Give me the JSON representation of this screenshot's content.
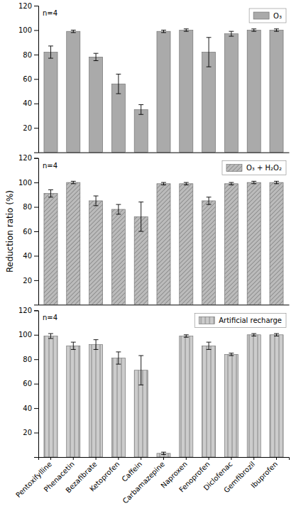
{
  "chart_data": [
    {
      "type": "bar",
      "categories": [
        "Pentoxifylline",
        "Phenacetin",
        "Bezafibrate",
        "Ketoprofen",
        "Caffein",
        "Carbamazepine",
        "Naproxen",
        "Fenoprofen",
        "Diclofenac",
        "Gemfibrozil",
        "Ibuprofen"
      ],
      "series": [
        {
          "name": "O₃",
          "color": "#aaaaaa",
          "values": [
            82,
            99,
            78,
            56,
            35,
            99,
            100,
            82,
            97,
            100,
            100
          ],
          "errors": [
            5,
            1,
            3,
            8,
            4,
            1,
            1,
            12,
            2,
            1,
            1
          ]
        }
      ],
      "annotations": [
        "n=4"
      ],
      "ylim": [
        0,
        120
      ],
      "yticks": [
        20,
        40,
        60,
        80,
        100,
        120
      ],
      "legend": "upper right",
      "tick_labels": "y"
    },
    {
      "type": "bar",
      "categories": [
        "Pentoxifylline",
        "Phenacetin",
        "Bezafibrate",
        "Ketoprofen",
        "Caffein",
        "Carbamazepine",
        "Naproxen",
        "Fenoprofen",
        "Diclofenac",
        "Gemfibrozil",
        "Ibuprofen"
      ],
      "series": [
        {
          "name": "O₃ + H₂O₂",
          "color": "#bbbbbb",
          "values": [
            91,
            100,
            85,
            78,
            72,
            99,
            99,
            85,
            99,
            100,
            100
          ],
          "errors": [
            3,
            1,
            4,
            4,
            12,
            1,
            1,
            3,
            1,
            1,
            1
          ]
        }
      ],
      "annotations": [
        "n=4"
      ],
      "ylabel": "Reduction ratio (%)",
      "ylim": [
        0,
        120
      ],
      "yticks": [
        20,
        40,
        60,
        80,
        100,
        120
      ],
      "legend": "upper right",
      "tick_labels": "y"
    },
    {
      "type": "bar",
      "categories": [
        "Pentoxifylline",
        "Phenacetin",
        "Bezafibrate",
        "Ketoprofen",
        "Caffein",
        "Carbamazepine",
        "Naproxen",
        "Fenoprofen",
        "Diclofenac",
        "Gemfibrozil",
        "Ibuprofen"
      ],
      "series": [
        {
          "name": "Artificial recharge",
          "color": "#cccccc",
          "values": [
            99,
            91,
            92,
            81,
            71,
            3,
            99,
            91,
            84,
            100,
            100
          ],
          "errors": [
            2,
            3,
            4,
            5,
            12,
            1,
            1,
            3,
            1,
            1,
            1
          ]
        }
      ],
      "annotations": [
        "n=4"
      ],
      "ylim": [
        0,
        120
      ],
      "yticks": [
        20,
        40,
        60,
        80,
        100,
        120
      ],
      "legend": "upper right"
    }
  ]
}
